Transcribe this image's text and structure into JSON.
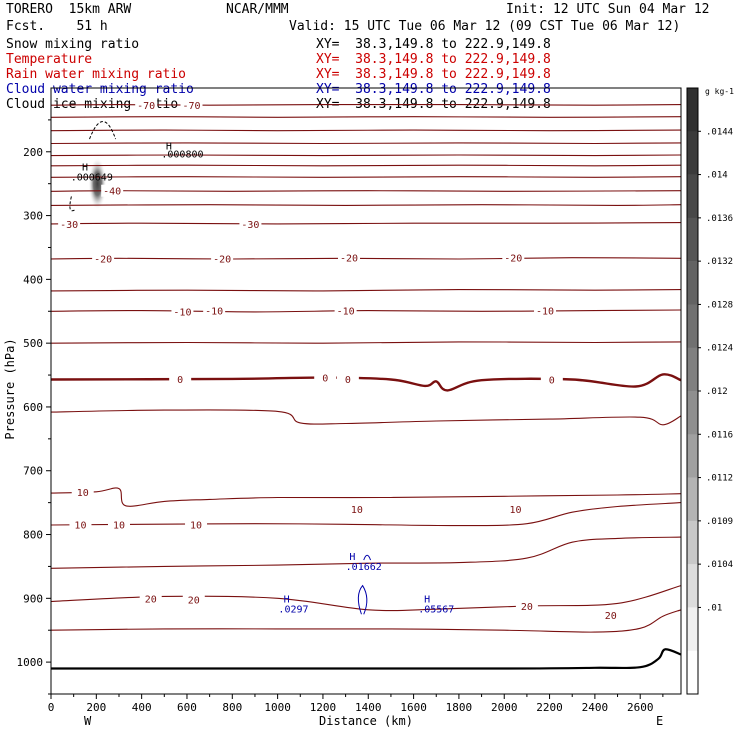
{
  "header": {
    "model": "TORERO  15km ARW",
    "fcst": "Fcst.    51 h",
    "center": "NCAR/MMM",
    "init": "Init: 12 UTC Sun 04 Mar 12",
    "valid": "Valid: 15 UTC Tue 06 Mar 12 (09 CST Tue 06 Mar 12)"
  },
  "legend": [
    {
      "label": "Snow mixing ratio",
      "xy": "XY=  38.3,149.8 to 222.9,149.8",
      "color": "#000000"
    },
    {
      "label": "Temperature",
      "xy": "XY=  38.3,149.8 to 222.9,149.8",
      "color": "#cc0000"
    },
    {
      "label": "Rain water mixing ratio",
      "xy": "XY=  38.3,149.8 to 222.9,149.8",
      "color": "#cc0000"
    },
    {
      "label": "Cloud water mixing ratio",
      "xy": "XY=  38.3,149.8 to 222.9,149.8",
      "color": "#0000aa"
    },
    {
      "label": "Cloud ice mixing ratio",
      "xy": "XY=  38.3,149.8 to 222.9,149.8",
      "color": "#000000"
    }
  ],
  "chart_data": {
    "type": "line",
    "xlabel": "Distance (km)",
    "ylabel": "Pressure (hPa)",
    "xlim": [
      0,
      2780
    ],
    "ylim": [
      1050,
      100
    ],
    "xticks": [
      0,
      200,
      400,
      600,
      800,
      1000,
      1200,
      1400,
      1600,
      1800,
      2000,
      2200,
      2400,
      2600
    ],
    "yticks": [
      200,
      300,
      400,
      500,
      600,
      700,
      800,
      900,
      1000
    ],
    "xend_labels": {
      "left": "W",
      "right": "E"
    },
    "temperature_color": "#7a1010",
    "temperature_series": [
      {
        "name": "-70",
        "points": [
          [
            0,
            127
          ],
          [
            300,
            126
          ],
          [
            700,
            127
          ],
          [
            1200,
            126
          ],
          [
            1800,
            126
          ],
          [
            2400,
            127
          ],
          [
            2780,
            126
          ]
        ]
      },
      {
        "name": "",
        "points": [
          [
            0,
            146
          ],
          [
            500,
            145
          ],
          [
            1000,
            146
          ],
          [
            1600,
            145
          ],
          [
            2200,
            146
          ],
          [
            2780,
            145
          ]
        ]
      },
      {
        "name": "",
        "points": [
          [
            0,
            167
          ],
          [
            500,
            166
          ],
          [
            1000,
            167
          ],
          [
            1600,
            166
          ],
          [
            2200,
            167
          ],
          [
            2780,
            166
          ]
        ]
      },
      {
        "name": "",
        "points": [
          [
            0,
            187
          ],
          [
            600,
            186
          ],
          [
            1200,
            187
          ],
          [
            1800,
            186
          ],
          [
            2400,
            187
          ],
          [
            2780,
            186
          ]
        ]
      },
      {
        "name": "",
        "points": [
          [
            0,
            206
          ],
          [
            600,
            205
          ],
          [
            1200,
            206
          ],
          [
            1800,
            205
          ],
          [
            2400,
            206
          ],
          [
            2780,
            205
          ]
        ]
      },
      {
        "name": "",
        "points": [
          [
            0,
            222
          ],
          [
            600,
            221
          ],
          [
            1200,
            222
          ],
          [
            1800,
            221
          ],
          [
            2400,
            222
          ],
          [
            2780,
            221
          ]
        ]
      },
      {
        "name": "",
        "points": [
          [
            0,
            240
          ],
          [
            600,
            239
          ],
          [
            1200,
            240
          ],
          [
            1800,
            239
          ],
          [
            2400,
            240
          ],
          [
            2780,
            239
          ]
        ]
      },
      {
        "name": "-40",
        "points": [
          [
            0,
            262
          ],
          [
            300,
            261
          ],
          [
            800,
            262
          ],
          [
            1400,
            261
          ],
          [
            2000,
            262
          ],
          [
            2780,
            261
          ]
        ]
      },
      {
        "name": "",
        "points": [
          [
            0,
            284
          ],
          [
            700,
            283
          ],
          [
            1300,
            284
          ],
          [
            1900,
            283
          ],
          [
            2500,
            284
          ],
          [
            2780,
            283
          ]
        ]
      },
      {
        "name": "-30",
        "points": [
          [
            0,
            313
          ],
          [
            400,
            312
          ],
          [
            1000,
            313
          ],
          [
            1600,
            312
          ],
          [
            2200,
            312
          ],
          [
            2780,
            311
          ]
        ]
      },
      {
        "name": "-20",
        "points": [
          [
            0,
            368
          ],
          [
            300,
            367
          ],
          [
            800,
            368
          ],
          [
            1300,
            367
          ],
          [
            1800,
            368
          ],
          [
            2300,
            366
          ],
          [
            2780,
            367
          ]
        ]
      },
      {
        "name": "",
        "points": [
          [
            0,
            418
          ],
          [
            600,
            417
          ],
          [
            1200,
            418
          ],
          [
            1800,
            416
          ],
          [
            2400,
            417
          ],
          [
            2780,
            416
          ]
        ]
      },
      {
        "name": "-10",
        "points": [
          [
            0,
            450
          ],
          [
            400,
            449
          ],
          [
            900,
            451
          ],
          [
            1400,
            449
          ],
          [
            1900,
            450
          ],
          [
            2400,
            449
          ],
          [
            2780,
            448
          ]
        ]
      },
      {
        "name": "",
        "points": [
          [
            0,
            500
          ],
          [
            600,
            499
          ],
          [
            1200,
            500
          ],
          [
            1800,
            498
          ],
          [
            2400,
            499
          ],
          [
            2780,
            498
          ]
        ]
      },
      {
        "name": "",
        "points": [
          [
            0,
            608
          ],
          [
            500,
            605
          ],
          [
            1000,
            607
          ],
          [
            1100,
            625
          ],
          [
            1300,
            626
          ],
          [
            1700,
            622
          ],
          [
            2200,
            619
          ],
          [
            2600,
            616
          ],
          [
            2700,
            628
          ],
          [
            2780,
            614
          ]
        ]
      },
      {
        "name": "10",
        "points": [
          [
            0,
            735
          ],
          [
            200,
            733
          ],
          [
            300,
            728
          ],
          [
            330,
            755
          ],
          [
            500,
            748
          ],
          [
            700,
            745
          ],
          [
            1000,
            742
          ],
          [
            1500,
            742
          ],
          [
            2000,
            740
          ],
          [
            2500,
            738
          ],
          [
            2780,
            736
          ]
        ]
      },
      {
        "name": "10",
        "points": [
          [
            0,
            785
          ],
          [
            400,
            784
          ],
          [
            900,
            783
          ],
          [
            1300,
            784
          ],
          [
            1800,
            786
          ],
          [
            2100,
            783
          ],
          [
            2300,
            765
          ],
          [
            2500,
            756
          ],
          [
            2780,
            750
          ]
        ]
      },
      {
        "name": "",
        "points": [
          [
            0,
            853
          ],
          [
            500,
            850
          ],
          [
            1000,
            848
          ],
          [
            1400,
            845
          ],
          [
            1800,
            844
          ],
          [
            2100,
            837
          ],
          [
            2300,
            812
          ],
          [
            2500,
            806
          ],
          [
            2780,
            804
          ]
        ]
      },
      {
        "name": "20",
        "points": [
          [
            0,
            905
          ],
          [
            500,
            897
          ],
          [
            1000,
            900
          ],
          [
            1400,
            918
          ],
          [
            1700,
            917
          ],
          [
            2100,
            912
          ],
          [
            2500,
            908
          ],
          [
            2780,
            880
          ]
        ]
      },
      {
        "name": "20",
        "points": [
          [
            0,
            950
          ],
          [
            500,
            948
          ],
          [
            1000,
            948
          ],
          [
            1500,
            948
          ],
          [
            2000,
            950
          ],
          [
            2400,
            953
          ],
          [
            2600,
            947
          ],
          [
            2700,
            928
          ],
          [
            2780,
            918
          ]
        ]
      }
    ],
    "freezing_level": {
      "name": "0",
      "points": [
        [
          0,
          557
        ],
        [
          800,
          556
        ],
        [
          1200,
          554
        ],
        [
          1500,
          557
        ],
        [
          1650,
          567
        ],
        [
          1700,
          560
        ],
        [
          1750,
          574
        ],
        [
          1900,
          558
        ],
        [
          2300,
          557
        ],
        [
          2580,
          568
        ],
        [
          2700,
          549
        ],
        [
          2780,
          558
        ]
      ]
    },
    "terrain": {
      "points": [
        [
          0,
          1010
        ],
        [
          1000,
          1010
        ],
        [
          2000,
          1010
        ],
        [
          2400,
          1009
        ],
        [
          2600,
          1008
        ],
        [
          2680,
          995
        ],
        [
          2710,
          980
        ],
        [
          2780,
          988
        ]
      ]
    },
    "temperature_labels": [
      {
        "text": "-70",
        "x": 420,
        "p": 127
      },
      {
        "text": "-70",
        "x": 620,
        "p": 127
      },
      {
        "text": "-40",
        "x": 270,
        "p": 261
      },
      {
        "text": "-30",
        "x": 80,
        "p": 313
      },
      {
        "text": "-30",
        "x": 880,
        "p": 313
      },
      {
        "text": "-20",
        "x": 230,
        "p": 367
      },
      {
        "text": "-20",
        "x": 755,
        "p": 367
      },
      {
        "text": "-20",
        "x": 1315,
        "p": 366
      },
      {
        "text": "-20",
        "x": 2040,
        "p": 366
      },
      {
        "text": "-10",
        "x": 580,
        "p": 450
      },
      {
        "text": "-10",
        "x": 720,
        "p": 449
      },
      {
        "text": "-10",
        "x": 1300,
        "p": 449
      },
      {
        "text": "-10",
        "x": 2180,
        "p": 449
      },
      {
        "text": "0",
        "x": 570,
        "p": 556
      },
      {
        "text": "0",
        "x": 1210,
        "p": 554
      },
      {
        "text": "0",
        "x": 1310,
        "p": 556
      },
      {
        "text": "0",
        "x": 2210,
        "p": 557
      },
      {
        "text": "10",
        "x": 140,
        "p": 733
      },
      {
        "text": "10",
        "x": 130,
        "p": 784
      },
      {
        "text": "10",
        "x": 300,
        "p": 784
      },
      {
        "text": "10",
        "x": 640,
        "p": 784
      },
      {
        "text": "10",
        "x": 1350,
        "p": 760
      },
      {
        "text": "10",
        "x": 2050,
        "p": 760
      },
      {
        "text": "20",
        "x": 440,
        "p": 900
      },
      {
        "text": "20",
        "x": 630,
        "p": 902
      },
      {
        "text": "20",
        "x": 2100,
        "p": 912
      },
      {
        "text": "20",
        "x": 2470,
        "p": 926
      }
    ],
    "extrema_labels": [
      {
        "text": "H",
        "x": 520,
        "p": 190,
        "color": "#000000"
      },
      {
        "text": ".000800",
        "x": 580,
        "p": 203,
        "color": "#000000"
      },
      {
        "text": "H",
        "x": 150,
        "p": 223,
        "color": "#000000"
      },
      {
        "text": ".000649",
        "x": 180,
        "p": 239,
        "color": "#000000"
      },
      {
        "text": "H",
        "x": 1330,
        "p": 834,
        "color": "#0000aa"
      },
      {
        "text": ".01662",
        "x": 1380,
        "p": 849,
        "color": "#0000aa"
      },
      {
        "text": "H",
        "x": 1040,
        "p": 900,
        "color": "#0000aa"
      },
      {
        "text": ".0297",
        "x": 1070,
        "p": 916,
        "color": "#0000aa"
      },
      {
        "text": "H",
        "x": 1660,
        "p": 900,
        "color": "#0000aa"
      },
      {
        "text": ".05567",
        "x": 1700,
        "p": 916,
        "color": "#0000aa"
      }
    ],
    "snow_shading_center": {
      "x": 205,
      "p": 250
    },
    "colorbar": {
      "unit": "g kg-1",
      "labels": [
        ".0144",
        ".014",
        ".0136",
        ".0132",
        ".0128",
        ".0124",
        ".012",
        ".0116",
        ".0112",
        ".0109",
        ".0104",
        ".01"
      ],
      "colors": [
        "#303030",
        "#3b3b3b",
        "#484848",
        "#555555",
        "#636363",
        "#717171",
        "#808080",
        "#8f8f8f",
        "#a0a0a0",
        "#b3b3b3",
        "#c8c8c8",
        "#dcdcdc",
        "#f0f0f0",
        "#ffffff"
      ]
    }
  }
}
